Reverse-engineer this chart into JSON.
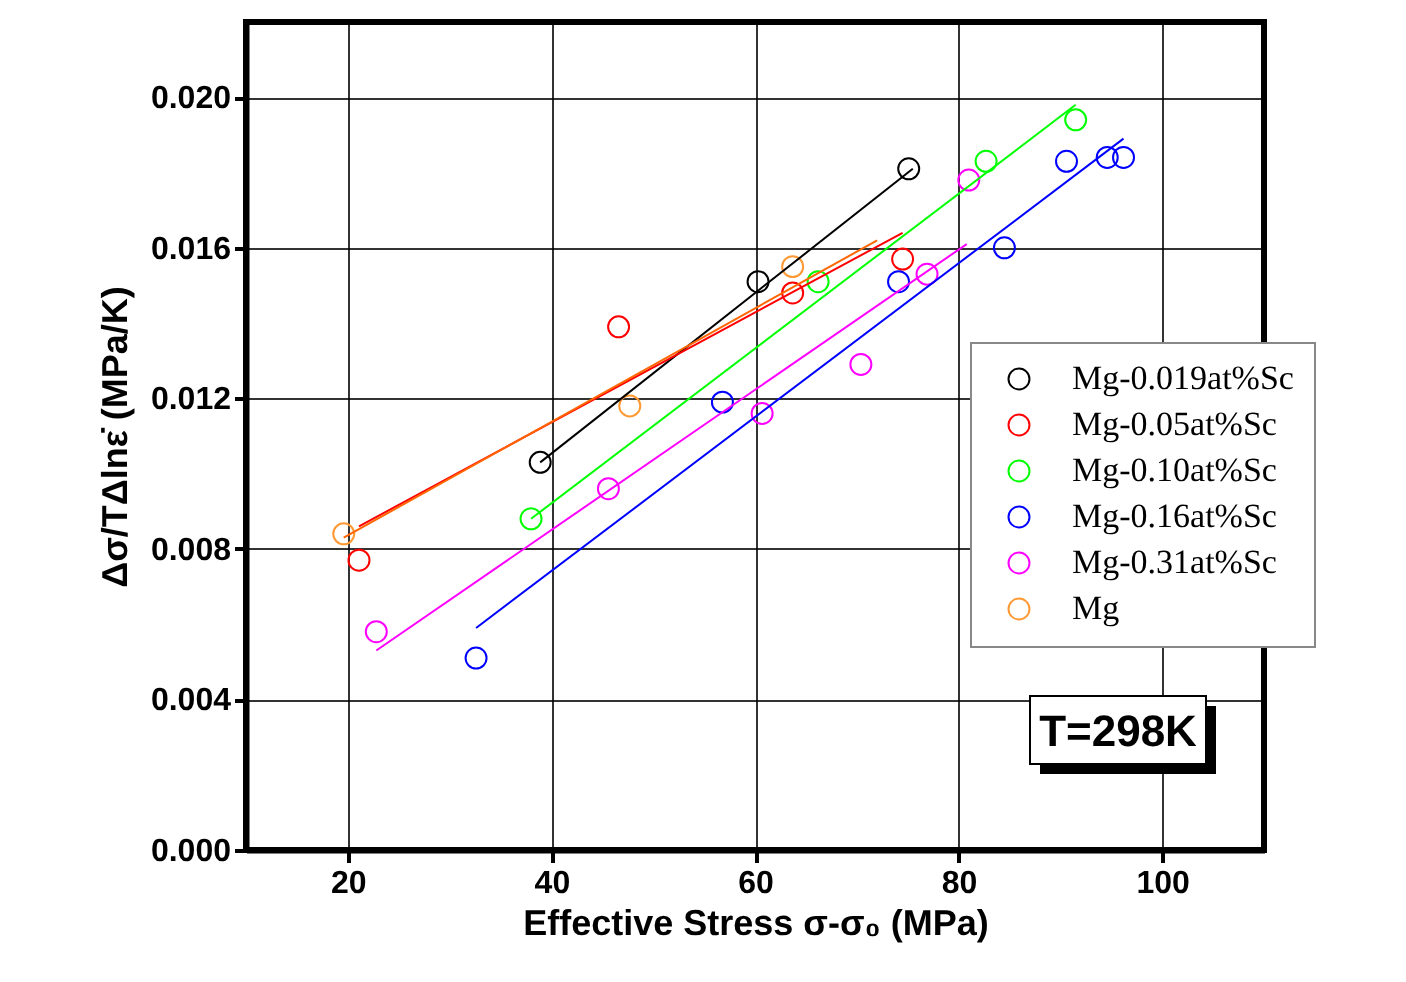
{
  "chart_data": {
    "type": "scatter",
    "xlabel": "Effective Stress σ-σ₀ (MPa)",
    "ylabel": "Δσ/TΔlnε̇ (MPa/K)",
    "xlim": [
      10,
      110
    ],
    "ylim": [
      0,
      0.022
    ],
    "xticks": [
      20,
      40,
      60,
      80,
      100
    ],
    "yticks": [
      {
        "value": 0,
        "label": "0.000"
      },
      {
        "value": 0.004,
        "label": "0.004"
      },
      {
        "value": 0.008,
        "label": "0.008"
      },
      {
        "value": 0.012,
        "label": "0.012"
      },
      {
        "value": 0.016,
        "label": "0.016"
      },
      {
        "value": 0.02,
        "label": "0.020"
      }
    ],
    "grid": true,
    "legend": "right",
    "marker": "circle",
    "annotations": [
      "T=298K"
    ],
    "series": [
      {
        "name": "Mg-0.019at%Sc",
        "color": "#000000",
        "x": [
          38.9,
          60.3,
          75.1
        ],
        "values": [
          0.0103,
          0.0151,
          0.0181
        ]
      },
      {
        "name": "Mg-0.05at%Sc",
        "color": "#ff0000",
        "x": [
          21.1,
          46.6,
          63.7,
          74.5
        ],
        "values": [
          0.0077,
          0.0139,
          0.0148,
          0.0157
        ]
      },
      {
        "name": "Mg-0.10at%Sc",
        "color": "#00ff00",
        "x": [
          38.0,
          66.2,
          82.7,
          91.5
        ],
        "values": [
          0.0088,
          0.0151,
          0.0183,
          0.0194
        ]
      },
      {
        "name": "Mg-0.16at%Sc",
        "color": "#0000ff",
        "x": [
          32.6,
          56.8,
          74.1,
          84.5,
          90.6,
          94.6,
          96.2
        ],
        "values": [
          0.0051,
          0.0119,
          0.0151,
          0.016,
          0.0183,
          0.0184,
          0.0184
        ]
      },
      {
        "name": "Mg-0.31at%Sc",
        "color": "#ff00ff",
        "x": [
          22.8,
          45.6,
          60.7,
          70.4,
          76.9,
          81.0
        ],
        "values": [
          0.0058,
          0.0096,
          0.0116,
          0.0129,
          0.0153,
          0.0178
        ]
      },
      {
        "name": "Mg",
        "color": "#ff9933",
        "x": [
          19.6,
          47.7,
          63.7
        ],
        "values": [
          0.0084,
          0.0118,
          0.0155
        ]
      },
      {
        "type": "line",
        "marker": "none",
        "color": "#000000",
        "x": [
          38.9,
          75.5
        ],
        "values": [
          0.0103,
          0.0181
        ]
      },
      {
        "type": "line",
        "marker": "none",
        "color": "#ff0000",
        "x": [
          21.1,
          74.5
        ],
        "values": [
          0.0086,
          0.0164
        ]
      },
      {
        "type": "line",
        "marker": "none",
        "color": "#00ff00",
        "x": [
          38.0,
          91.5
        ],
        "values": [
          0.0088,
          0.0198
        ]
      },
      {
        "type": "line",
        "marker": "none",
        "color": "#0000ff",
        "x": [
          32.6,
          96.2
        ],
        "values": [
          0.0059,
          0.0189
        ]
      },
      {
        "type": "line",
        "marker": "none",
        "color": "#ff00ff",
        "x": [
          22.8,
          80.8
        ],
        "values": [
          0.0053,
          0.0161
        ]
      },
      {
        "type": "line",
        "marker": "none",
        "color": "#ff6600",
        "x": [
          19.6,
          72.0
        ],
        "values": [
          0.0083,
          0.0162
        ]
      }
    ]
  }
}
